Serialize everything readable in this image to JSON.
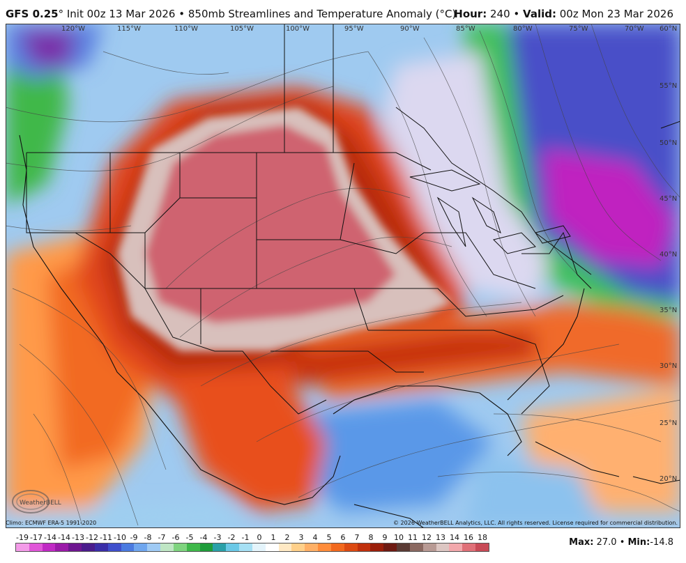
{
  "header": {
    "model": "GFS 0.25",
    "degree": "°",
    "init": "Init 00z 13 Mar 2026",
    "bullet": "•",
    "product": "850mb Streamlines and Temperature Anomaly (",
    "unit": "°C",
    "product_end": ")",
    "hour_label": "Hour:",
    "hour_value": "240",
    "valid_label": "Valid:",
    "valid_value": "00z Mon 23 Mar 2026"
  },
  "longitude_labels": [
    "120°W",
    "115°W",
    "110°W",
    "105°W",
    "100°W",
    "95°W",
    "90°W",
    "85°W",
    "80°W",
    "75°W",
    "70°W",
    "60°N"
  ],
  "latitude_labels": [
    "55°N",
    "50°N",
    "45°N",
    "40°N",
    "35°N",
    "30°N",
    "25°N",
    "20°N"
  ],
  "footer": {
    "climo": "Climo: ECMWF ERA-5 1991-2020",
    "copyright": "© 2026 WeatherBELL Analytics, LLC. All rights reserved. License required for commercial distribution."
  },
  "colorbar": {
    "labels": [
      "-19",
      "-17",
      "-14",
      "-14",
      "-13",
      "-12",
      "-11",
      "-10",
      "-9",
      "-8",
      "-7",
      "-6",
      "-5",
      "-4",
      "-3",
      "-2",
      "-1",
      "0",
      "1",
      "2",
      "3",
      "4",
      "5",
      "6",
      "7",
      "8",
      "9",
      "10",
      "11",
      "12",
      "13",
      "14",
      "16",
      "18"
    ],
    "colors": [
      "#f39be8",
      "#e056d8",
      "#c02ac4",
      "#9a1aa8",
      "#6e1690",
      "#4a1c8c",
      "#3a2ea8",
      "#3f4fcc",
      "#4a7ae0",
      "#6fa6ee",
      "#9fcaf4",
      "#bfe6c4",
      "#7fd47f",
      "#3fb84a",
      "#1f9c3a",
      "#2aa0a8",
      "#6ac8e6",
      "#a6e0f4",
      "#e4f4fb",
      "#ffffff",
      "#ffe9c4",
      "#ffd08a",
      "#ffb066",
      "#ff8c3a",
      "#f2691e",
      "#dc4a12",
      "#c0300c",
      "#9a1e0a",
      "#6e1a12",
      "#5a3a34",
      "#8a6860",
      "#b89a94",
      "#dcc6c2",
      "#f2a8ac",
      "#e07078",
      "#c84a56"
    ]
  },
  "stats": {
    "max_label": "Max:",
    "max_value": "27.0",
    "min_label": "Min:",
    "min_value": "-14.8"
  },
  "logo": {
    "text": "WeatherBELL"
  }
}
